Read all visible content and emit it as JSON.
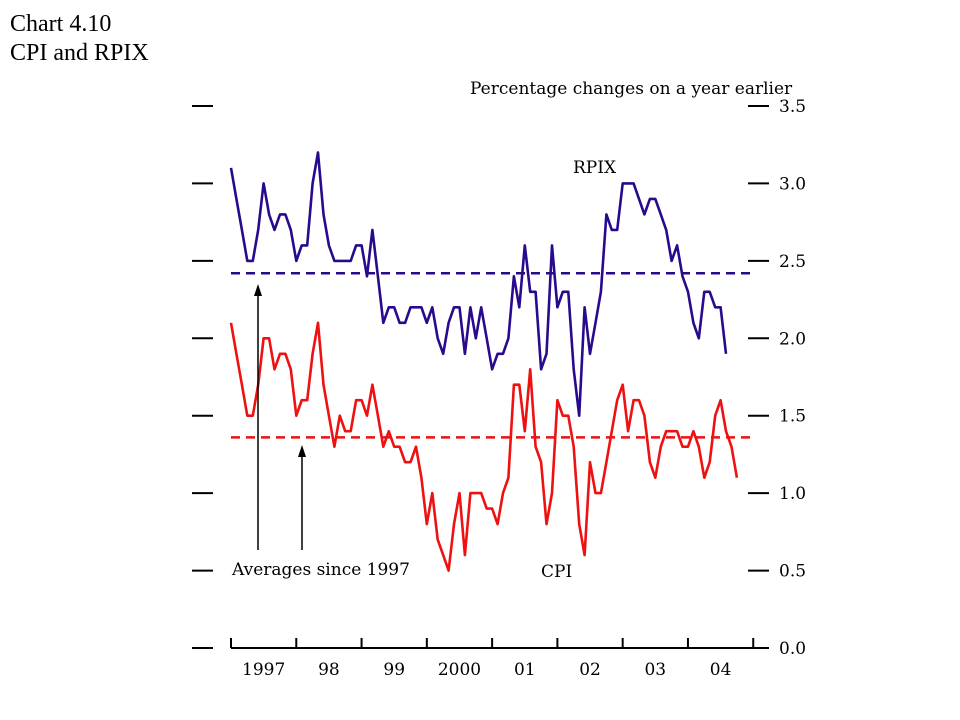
{
  "header": {
    "title_line1": "Chart 4.10",
    "title_line2": "CPI and RPIX"
  },
  "chart_data": {
    "type": "line",
    "subtitle": "Percentage changes on a year earlier",
    "ylim": [
      0,
      3.5
    ],
    "y_ticks": [
      "0.0",
      "0.5",
      "1.0",
      "1.5",
      "2.0",
      "2.5",
      "3.0",
      "3.5"
    ],
    "x_tick_labels": [
      "1997",
      "98",
      "99",
      "2000",
      "01",
      "02",
      "03",
      "04"
    ],
    "x_start": "1997-01",
    "series": [
      {
        "name": "RPIX",
        "color": "#2a0a8c",
        "values": [
          3.1,
          2.9,
          2.7,
          2.5,
          2.5,
          2.7,
          3.0,
          2.8,
          2.7,
          2.8,
          2.8,
          2.7,
          2.5,
          2.6,
          2.6,
          3.0,
          3.2,
          2.8,
          2.6,
          2.5,
          2.5,
          2.5,
          2.5,
          2.6,
          2.6,
          2.4,
          2.7,
          2.4,
          2.1,
          2.2,
          2.2,
          2.1,
          2.1,
          2.2,
          2.2,
          2.2,
          2.1,
          2.2,
          2.0,
          1.9,
          2.1,
          2.2,
          2.2,
          1.9,
          2.2,
          2.0,
          2.2,
          2.0,
          1.8,
          1.9,
          1.9,
          2.0,
          2.4,
          2.2,
          2.6,
          2.3,
          2.3,
          1.8,
          1.9,
          2.6,
          2.2,
          2.3,
          2.3,
          1.8,
          1.5,
          2.2,
          1.9,
          2.1,
          2.3,
          2.8,
          2.7,
          2.7,
          3.0,
          3.0,
          3.0,
          2.9,
          2.8,
          2.9,
          2.9,
          2.8,
          2.7,
          2.5,
          2.6,
          2.4,
          2.3,
          2.1,
          2.0,
          2.3,
          2.3,
          2.2,
          2.2,
          1.9
        ]
      },
      {
        "name": "CPI",
        "color": "#ee1111",
        "values": [
          2.1,
          1.9,
          1.7,
          1.5,
          1.5,
          1.7,
          2.0,
          2.0,
          1.8,
          1.9,
          1.9,
          1.8,
          1.5,
          1.6,
          1.6,
          1.9,
          2.1,
          1.7,
          1.5,
          1.3,
          1.5,
          1.4,
          1.4,
          1.6,
          1.6,
          1.5,
          1.7,
          1.5,
          1.3,
          1.4,
          1.3,
          1.3,
          1.2,
          1.2,
          1.3,
          1.1,
          0.8,
          1.0,
          0.7,
          0.6,
          0.5,
          0.8,
          1.0,
          0.6,
          1.0,
          1.0,
          1.0,
          0.9,
          0.9,
          0.8,
          1.0,
          1.1,
          1.7,
          1.7,
          1.4,
          1.8,
          1.3,
          1.2,
          0.8,
          1.0,
          1.6,
          1.5,
          1.5,
          1.3,
          0.8,
          0.6,
          1.2,
          1.0,
          1.0,
          1.2,
          1.4,
          1.6,
          1.7,
          1.4,
          1.6,
          1.6,
          1.5,
          1.2,
          1.1,
          1.3,
          1.4,
          1.4,
          1.4,
          1.3,
          1.3,
          1.4,
          1.3,
          1.1,
          1.2,
          1.5,
          1.6,
          1.4,
          1.3,
          1.1
        ]
      }
    ],
    "averages": [
      {
        "series": "RPIX",
        "value": 2.42,
        "color": "#2a0a8c"
      },
      {
        "series": "CPI",
        "value": 1.36,
        "color": "#ee1111"
      }
    ],
    "annotations": {
      "averages_label": "Averages since 1997",
      "rpix_label": "RPIX",
      "cpi_label": "CPI"
    }
  }
}
